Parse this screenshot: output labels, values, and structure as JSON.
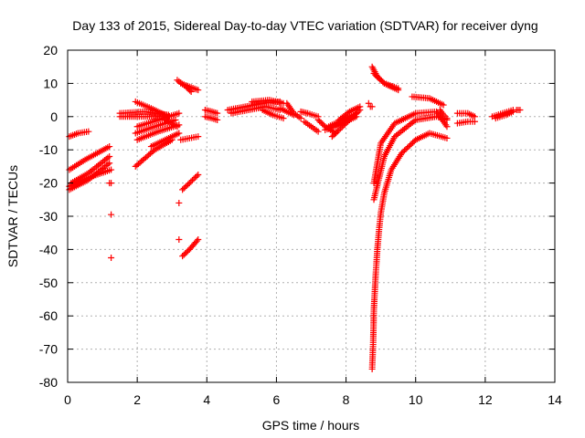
{
  "chart_data": {
    "type": "scatter",
    "title": "Day 133 of 2015, Sidereal Day-to-day VTEC variation (SDTVAR) for receiver dyng",
    "xlabel": "GPS time / hours",
    "ylabel": "SDTVAR / TECUs",
    "xlim": [
      0,
      14
    ],
    "ylim": [
      -80,
      20
    ],
    "xticks": [
      "0",
      "2",
      "4",
      "6",
      "8",
      "10",
      "12",
      "14"
    ],
    "yticks": [
      "20",
      "10",
      "0",
      "-10",
      "-20",
      "-30",
      "-40",
      "-50",
      "-60",
      "-70",
      "-80"
    ],
    "grid": true,
    "marker": "+",
    "color": "#ff0000",
    "segments": [
      {
        "x": [
          0.05,
          0.3,
          0.6
        ],
        "y": [
          -6,
          -5,
          -4.5
        ]
      },
      {
        "x": [
          0.05,
          0.5,
          1.2
        ],
        "y": [
          -16,
          -13,
          -9
        ]
      },
      {
        "x": [
          0.05,
          0.6,
          1.2
        ],
        "y": [
          -22,
          -19,
          -14
        ]
      },
      {
        "x": [
          0.1,
          0.6,
          1.2
        ],
        "y": [
          -20,
          -17,
          -12
        ]
      },
      {
        "x": [
          0.05,
          0.7,
          1.25
        ],
        "y": [
          -21,
          -18,
          -16
        ]
      },
      {
        "x": [
          1.2,
          1.25
        ],
        "y": [
          -20,
          -20
        ]
      },
      {
        "x": [
          1.25
        ],
        "y": [
          -29.5
        ]
      },
      {
        "x": [
          1.25
        ],
        "y": [
          -42.5
        ]
      },
      {
        "x": [
          1.5,
          2.0,
          2.7
        ],
        "y": [
          0,
          0,
          0
        ]
      },
      {
        "x": [
          1.5,
          2.2,
          2.9
        ],
        "y": [
          1,
          1.5,
          0.5
        ]
      },
      {
        "x": [
          1.95,
          2.4,
          2.9
        ],
        "y": [
          4.5,
          2.5,
          0
        ]
      },
      {
        "x": [
          1.95,
          2.5,
          3.0
        ],
        "y": [
          -15,
          -10,
          -7
        ]
      },
      {
        "x": [
          1.95,
          2.5,
          3.1
        ],
        "y": [
          -5,
          -3,
          -1
        ]
      },
      {
        "x": [
          2.0,
          2.6,
          3.2
        ],
        "y": [
          -7,
          -4.5,
          -2.5
        ]
      },
      {
        "x": [
          2.0,
          2.6,
          3.2
        ],
        "y": [
          -3,
          -1,
          1
        ]
      },
      {
        "x": [
          2.4,
          2.8,
          3.2
        ],
        "y": [
          -9,
          -7,
          -5
        ]
      },
      {
        "x": [
          2.8,
          3.0,
          3.15
        ],
        "y": [
          -1,
          -2,
          -3
        ]
      },
      {
        "x": [
          3.15,
          3.4,
          3.55
        ],
        "y": [
          11,
          9,
          7.5
        ]
      },
      {
        "x": [
          3.25,
          3.5,
          3.75
        ],
        "y": [
          10,
          9,
          8
        ]
      },
      {
        "x": [
          3.25,
          3.5,
          3.75
        ],
        "y": [
          -7,
          -6.5,
          -6
        ]
      },
      {
        "x": [
          3.2
        ],
        "y": [
          -26
        ]
      },
      {
        "x": [
          3.2
        ],
        "y": [
          -37
        ]
      },
      {
        "x": [
          3.3,
          3.5,
          3.75
        ],
        "y": [
          -22,
          -20,
          -17.5
        ]
      },
      {
        "x": [
          3.3,
          3.5,
          3.75
        ],
        "y": [
          -42,
          -40,
          -37
        ]
      },
      {
        "x": [
          3.95,
          4.15,
          4.3
        ],
        "y": [
          2,
          1.5,
          1
        ]
      },
      {
        "x": [
          3.95,
          4.15,
          4.3
        ],
        "y": [
          0,
          -0.5,
          -1
        ]
      },
      {
        "x": [
          4.6,
          5.1,
          5.6,
          6.1
        ],
        "y": [
          2,
          3,
          4,
          4.5
        ]
      },
      {
        "x": [
          4.7,
          5.2,
          5.7,
          6.1
        ],
        "y": [
          1,
          2,
          3,
          2
        ]
      },
      {
        "x": [
          5.3,
          5.8,
          6.2
        ],
        "y": [
          4.5,
          5,
          4
        ]
      },
      {
        "x": [
          5.6,
          5.9,
          6.2
        ],
        "y": [
          2,
          0.5,
          -0.5
        ]
      },
      {
        "x": [
          6.1,
          6.3,
          6.5
        ],
        "y": [
          2.5,
          1.5,
          0.5
        ]
      },
      {
        "x": [
          6.3,
          6.5,
          6.7
        ],
        "y": [
          4,
          1,
          -0.5
        ]
      },
      {
        "x": [
          6.7,
          6.9,
          7.2
        ],
        "y": [
          1.5,
          1,
          0
        ]
      },
      {
        "x": [
          6.8,
          7.0,
          7.2
        ],
        "y": [
          -1.5,
          -3,
          -4.5
        ]
      },
      {
        "x": [
          7.2,
          7.4,
          7.7
        ],
        "y": [
          -1,
          -3,
          -5
        ]
      },
      {
        "x": [
          7.4,
          7.7,
          8.0,
          8.3
        ],
        "y": [
          -4,
          -3,
          -1.5,
          0
        ]
      },
      {
        "x": [
          7.5,
          7.9,
          8.3
        ],
        "y": [
          -3,
          -1,
          1
        ]
      },
      {
        "x": [
          7.6,
          7.8,
          8.1,
          8.4
        ],
        "y": [
          -6,
          -4,
          -1,
          2
        ]
      },
      {
        "x": [
          7.8,
          8.1,
          8.4
        ],
        "y": [
          -1,
          1.5,
          3
        ]
      },
      {
        "x": [
          8.65
        ],
        "y": [
          4
        ]
      },
      {
        "x": [
          8.7,
          8.75
        ],
        "y": [
          3,
          3
        ]
      },
      {
        "x": [
          8.75,
          8.9,
          9.1,
          9.5
        ],
        "y": [
          15,
          12,
          10,
          8.5
        ]
      },
      {
        "x": [
          8.8,
          9.1,
          9.5
        ],
        "y": [
          13,
          10,
          8
        ]
      },
      {
        "x": [
          8.8,
          9.1,
          9.4,
          10.0,
          10.6,
          10.9
        ],
        "y": [
          -25,
          -12,
          -6,
          -1,
          0,
          -1
        ]
      },
      {
        "x": [
          8.8,
          9.0,
          9.4,
          10.0,
          10.6,
          10.9
        ],
        "y": [
          -20,
          -8,
          -2,
          1,
          1.5,
          -3
        ]
      },
      {
        "x": [
          8.75,
          8.78,
          8.8,
          8.85,
          8.9,
          8.95,
          9.0,
          9.1,
          9.3,
          9.6,
          10.0,
          10.4,
          10.9
        ],
        "y": [
          -76,
          -68,
          -58,
          -48,
          -40,
          -34,
          -29,
          -23,
          -16,
          -11,
          -7,
          -5,
          -6.5
        ]
      },
      {
        "x": [
          10.7,
          10.8,
          10.9
        ],
        "y": [
          2,
          0.5,
          -0.5
        ]
      },
      {
        "x": [
          9.9,
          10.4,
          10.8
        ],
        "y": [
          6,
          5.5,
          3.5
        ]
      },
      {
        "x": [
          11.2,
          11.5,
          11.7
        ],
        "y": [
          1,
          1,
          0
        ]
      },
      {
        "x": [
          11.2,
          11.5,
          11.7
        ],
        "y": [
          -2,
          -1.5,
          -1.5
        ]
      },
      {
        "x": [
          12.2,
          12.5,
          12.8
        ],
        "y": [
          0,
          1,
          2
        ]
      },
      {
        "x": [
          12.3,
          12.6,
          12.8
        ],
        "y": [
          -0.5,
          0.5,
          1.5
        ]
      },
      {
        "x": [
          12.9,
          13.0
        ],
        "y": [
          2,
          2
        ]
      }
    ]
  }
}
